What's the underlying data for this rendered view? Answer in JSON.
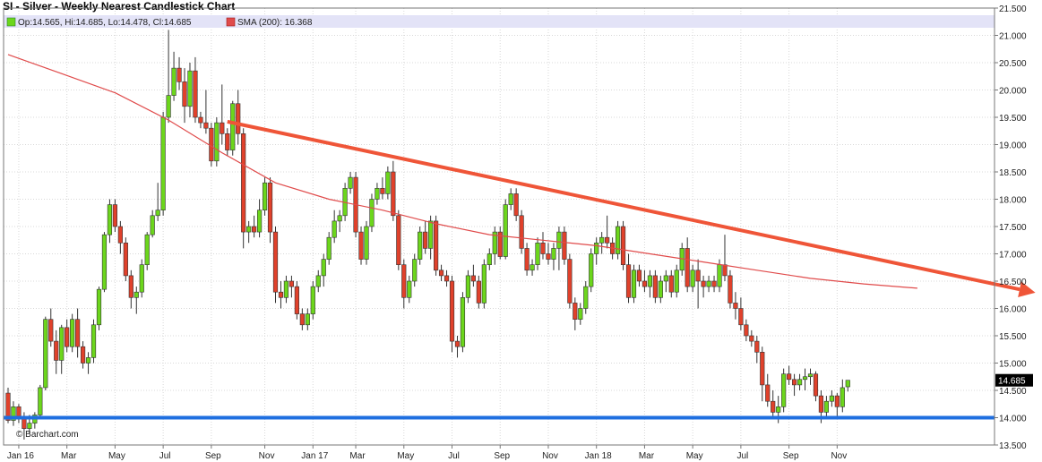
{
  "chart_title": "SI - Silver - Weekly Nearest Candlestick Chart",
  "legend": {
    "ohlc_label": "Op:14.565, Hi:14.685, Lo:14.478, Cl:14.685",
    "sma_label": "SMA (200): 16.368"
  },
  "watermark": "© Barchart.com",
  "colors": {
    "up": "#6cd61c",
    "down": "#e0412b",
    "sma": "#e04b4b",
    "trend_down": "#ef5538",
    "support": "#1f6fe0",
    "legend_band": "#e3e3f7",
    "grid": "#d8d8d8"
  },
  "chart_data": {
    "type": "candlestick",
    "title": "SI - Silver - Weekly Nearest Candlestick Chart",
    "y_range": [
      13.5,
      21.5
    ],
    "y_ticks": [
      "13.500",
      "14.000",
      "14.500",
      "15.000",
      "15.500",
      "16.000",
      "16.500",
      "17.000",
      "17.500",
      "18.000",
      "18.500",
      "19.000",
      "19.500",
      "20.000",
      "20.500",
      "21.000",
      "21.500"
    ],
    "x_ticks": [
      "Jan 16",
      "Mar",
      "May",
      "Jul",
      "Sep",
      "Nov",
      "Jan 17",
      "Mar",
      "May",
      "Jul",
      "Sep",
      "Nov",
      "Jan 18",
      "Mar",
      "May",
      "Jul",
      "Sep",
      "Nov"
    ],
    "last_price_label": "14.685",
    "series": [
      {
        "kind": "candles",
        "ohlc": [
          [
            14.45,
            14.55,
            13.9,
            13.95
          ],
          [
            13.95,
            14.3,
            13.85,
            14.2
          ],
          [
            14.2,
            14.25,
            13.9,
            14.0
          ],
          [
            14.0,
            14.1,
            13.6,
            13.8
          ],
          [
            13.8,
            14.05,
            13.7,
            13.9
          ],
          [
            13.9,
            14.1,
            13.8,
            14.05
          ],
          [
            14.05,
            14.6,
            14.0,
            14.55
          ],
          [
            14.55,
            15.85,
            14.5,
            15.8
          ],
          [
            15.8,
            16.0,
            15.3,
            15.4
          ],
          [
            15.4,
            15.6,
            14.8,
            15.05
          ],
          [
            15.05,
            15.7,
            14.8,
            15.65
          ],
          [
            15.65,
            15.8,
            15.2,
            15.3
          ],
          [
            15.3,
            15.9,
            15.2,
            15.8
          ],
          [
            15.8,
            16.0,
            15.1,
            15.3
          ],
          [
            15.3,
            15.4,
            14.9,
            15.0
          ],
          [
            15.0,
            15.2,
            14.8,
            15.1
          ],
          [
            15.1,
            15.8,
            15.0,
            15.7
          ],
          [
            15.7,
            16.4,
            15.6,
            16.35
          ],
          [
            16.35,
            17.4,
            16.3,
            17.35
          ],
          [
            17.35,
            18.0,
            17.2,
            17.9
          ],
          [
            17.9,
            18.0,
            17.4,
            17.5
          ],
          [
            17.5,
            17.6,
            17.0,
            17.2
          ],
          [
            17.2,
            17.3,
            16.5,
            16.6
          ],
          [
            16.6,
            16.7,
            16.0,
            16.2
          ],
          [
            16.2,
            16.4,
            15.9,
            16.3
          ],
          [
            16.3,
            16.9,
            16.2,
            16.8
          ],
          [
            16.8,
            17.4,
            16.7,
            17.35
          ],
          [
            17.35,
            17.8,
            17.3,
            17.7
          ],
          [
            17.7,
            18.3,
            17.6,
            17.8
          ],
          [
            17.8,
            19.6,
            17.7,
            19.5
          ],
          [
            19.5,
            21.1,
            19.4,
            19.9
          ],
          [
            19.9,
            20.7,
            19.8,
            20.4
          ],
          [
            20.4,
            20.6,
            20.0,
            20.15
          ],
          [
            20.15,
            20.4,
            19.4,
            19.7
          ],
          [
            19.7,
            20.5,
            19.5,
            20.35
          ],
          [
            20.35,
            20.6,
            19.4,
            19.5
          ],
          [
            19.5,
            19.6,
            19.3,
            19.4
          ],
          [
            19.4,
            20.0,
            19.2,
            19.3
          ],
          [
            19.3,
            19.4,
            18.6,
            18.7
          ],
          [
            18.7,
            19.5,
            18.6,
            19.4
          ],
          [
            19.4,
            20.1,
            19.0,
            19.2
          ],
          [
            19.2,
            19.3,
            18.8,
            18.9
          ],
          [
            18.9,
            19.8,
            18.8,
            19.75
          ],
          [
            19.75,
            20.0,
            19.0,
            19.2
          ],
          [
            19.2,
            19.3,
            17.1,
            17.4
          ],
          [
            17.4,
            17.6,
            17.2,
            17.5
          ],
          [
            17.5,
            17.7,
            17.3,
            17.4
          ],
          [
            17.4,
            18.0,
            17.3,
            17.8
          ],
          [
            17.8,
            18.4,
            17.7,
            18.3
          ],
          [
            18.3,
            18.4,
            17.2,
            17.4
          ],
          [
            17.4,
            17.5,
            16.1,
            16.3
          ],
          [
            16.3,
            16.5,
            16.0,
            16.2
          ],
          [
            16.2,
            16.6,
            16.1,
            16.5
          ],
          [
            16.5,
            16.6,
            16.2,
            16.4
          ],
          [
            16.4,
            16.5,
            15.8,
            15.9
          ],
          [
            15.9,
            16.0,
            15.6,
            15.7
          ],
          [
            15.7,
            16.0,
            15.6,
            15.9
          ],
          [
            15.9,
            16.5,
            15.8,
            16.4
          ],
          [
            16.4,
            16.7,
            16.3,
            16.6
          ],
          [
            16.6,
            17.0,
            16.4,
            16.9
          ],
          [
            16.9,
            17.4,
            16.8,
            17.3
          ],
          [
            17.3,
            17.8,
            17.2,
            17.6
          ],
          [
            17.6,
            17.8,
            17.4,
            17.7
          ],
          [
            17.7,
            18.3,
            17.6,
            18.2
          ],
          [
            18.2,
            18.5,
            18.1,
            18.4
          ],
          [
            18.4,
            18.5,
            17.3,
            17.4
          ],
          [
            17.4,
            17.5,
            16.8,
            16.9
          ],
          [
            16.9,
            17.6,
            16.8,
            17.5
          ],
          [
            17.5,
            18.1,
            17.4,
            18.0
          ],
          [
            18.0,
            18.3,
            17.9,
            18.2
          ],
          [
            18.2,
            18.4,
            18.0,
            18.1
          ],
          [
            18.1,
            18.6,
            18.0,
            18.5
          ],
          [
            18.5,
            18.7,
            17.6,
            17.7
          ],
          [
            17.7,
            17.8,
            16.7,
            16.8
          ],
          [
            16.8,
            16.9,
            16.0,
            16.2
          ],
          [
            16.2,
            16.6,
            16.1,
            16.5
          ],
          [
            16.5,
            17.0,
            16.4,
            16.9
          ],
          [
            16.9,
            17.5,
            16.8,
            17.4
          ],
          [
            17.4,
            17.6,
            17.0,
            17.1
          ],
          [
            17.1,
            17.7,
            16.9,
            17.6
          ],
          [
            17.6,
            17.7,
            16.6,
            16.7
          ],
          [
            16.7,
            16.8,
            16.5,
            16.6
          ],
          [
            16.6,
            16.7,
            16.4,
            16.5
          ],
          [
            16.5,
            16.6,
            15.2,
            15.4
          ],
          [
            15.4,
            15.5,
            15.1,
            15.3
          ],
          [
            15.3,
            16.3,
            15.2,
            16.2
          ],
          [
            16.2,
            16.7,
            16.1,
            16.6
          ],
          [
            16.6,
            16.8,
            16.4,
            16.5
          ],
          [
            16.5,
            16.6,
            16.0,
            16.1
          ],
          [
            16.1,
            16.9,
            16.0,
            16.8
          ],
          [
            16.8,
            17.1,
            16.7,
            17.0
          ],
          [
            17.0,
            17.5,
            16.8,
            17.4
          ],
          [
            17.4,
            17.5,
            16.9,
            16.95
          ],
          [
            16.95,
            18.0,
            16.9,
            17.9
          ],
          [
            17.9,
            18.2,
            17.8,
            18.1
          ],
          [
            18.1,
            18.2,
            17.6,
            17.7
          ],
          [
            17.7,
            17.8,
            17.0,
            17.1
          ],
          [
            17.1,
            17.2,
            16.6,
            16.7
          ],
          [
            16.7,
            16.9,
            16.6,
            16.8
          ],
          [
            16.8,
            17.3,
            16.7,
            17.2
          ],
          [
            17.2,
            17.4,
            16.9,
            17.0
          ],
          [
            17.0,
            17.2,
            16.8,
            16.9
          ],
          [
            16.9,
            17.2,
            16.7,
            17.1
          ],
          [
            17.1,
            17.5,
            16.7,
            17.4
          ],
          [
            17.4,
            17.5,
            16.8,
            16.9
          ],
          [
            16.9,
            17.0,
            16.0,
            16.1
          ],
          [
            16.1,
            16.2,
            15.6,
            15.8
          ],
          [
            15.8,
            16.1,
            15.7,
            16.0
          ],
          [
            16.0,
            16.5,
            15.9,
            16.4
          ],
          [
            16.4,
            17.1,
            16.3,
            17.0
          ],
          [
            17.0,
            17.3,
            16.8,
            17.2
          ],
          [
            17.2,
            17.4,
            17.0,
            17.3
          ],
          [
            17.3,
            17.7,
            17.1,
            17.2
          ],
          [
            17.2,
            17.3,
            16.9,
            17.0
          ],
          [
            17.0,
            17.6,
            16.9,
            17.5
          ],
          [
            17.5,
            17.6,
            16.7,
            16.8
          ],
          [
            16.8,
            17.0,
            16.1,
            16.2
          ],
          [
            16.2,
            16.8,
            16.1,
            16.7
          ],
          [
            16.7,
            16.8,
            16.4,
            16.5
          ],
          [
            16.5,
            16.7,
            16.3,
            16.4
          ],
          [
            16.4,
            16.7,
            16.2,
            16.6
          ],
          [
            16.6,
            16.7,
            16.1,
            16.2
          ],
          [
            16.2,
            16.6,
            16.1,
            16.5
          ],
          [
            16.5,
            16.7,
            16.3,
            16.6
          ],
          [
            16.6,
            16.7,
            16.2,
            16.3
          ],
          [
            16.3,
            16.8,
            16.2,
            16.7
          ],
          [
            16.7,
            17.2,
            16.6,
            17.1
          ],
          [
            17.1,
            17.3,
            16.3,
            16.4
          ],
          [
            16.4,
            16.8,
            16.3,
            16.7
          ],
          [
            16.7,
            16.9,
            16.0,
            16.5
          ],
          [
            16.5,
            16.6,
            16.2,
            16.4
          ],
          [
            16.4,
            16.6,
            16.3,
            16.5
          ],
          [
            16.5,
            16.6,
            16.3,
            16.4
          ],
          [
            16.4,
            16.9,
            16.3,
            16.8
          ],
          [
            16.8,
            17.35,
            16.5,
            16.6
          ],
          [
            16.6,
            16.7,
            16.0,
            16.1
          ],
          [
            16.1,
            16.3,
            15.8,
            16.0
          ],
          [
            16.0,
            16.2,
            15.6,
            15.7
          ],
          [
            15.7,
            15.8,
            15.4,
            15.5
          ],
          [
            15.5,
            15.6,
            15.3,
            15.4
          ],
          [
            15.4,
            15.5,
            15.0,
            15.2
          ],
          [
            15.2,
            15.3,
            14.3,
            14.6
          ],
          [
            14.6,
            14.8,
            14.2,
            14.3
          ],
          [
            14.3,
            14.5,
            14.0,
            14.1
          ],
          [
            14.1,
            14.4,
            13.9,
            14.2
          ],
          [
            14.2,
            14.9,
            14.1,
            14.8
          ],
          [
            14.8,
            14.95,
            14.6,
            14.7
          ],
          [
            14.7,
            14.8,
            14.4,
            14.6
          ],
          [
            14.6,
            14.8,
            14.5,
            14.7
          ],
          [
            14.7,
            14.9,
            14.5,
            14.75
          ],
          [
            14.75,
            14.9,
            14.6,
            14.8
          ],
          [
            14.8,
            14.85,
            14.3,
            14.4
          ],
          [
            14.4,
            14.5,
            13.9,
            14.1
          ],
          [
            14.1,
            14.4,
            14.0,
            14.3
          ],
          [
            14.3,
            14.5,
            14.2,
            14.4
          ],
          [
            14.4,
            14.45,
            14.0,
            14.2
          ],
          [
            14.2,
            14.7,
            14.1,
            14.55
          ],
          [
            14.565,
            14.685,
            14.478,
            14.685
          ]
        ]
      },
      {
        "kind": "line",
        "name": "SMA (200)",
        "x": [
          0,
          10,
          20,
          30,
          40,
          50,
          60,
          70,
          80,
          90,
          100,
          110,
          120,
          130,
          140,
          150,
          160,
          170
        ],
        "values": [
          20.65,
          20.3,
          19.95,
          19.45,
          18.85,
          18.3,
          18.0,
          17.8,
          17.55,
          17.35,
          17.25,
          17.15,
          17.0,
          16.85,
          16.7,
          16.55,
          16.45,
          16.37
        ]
      },
      {
        "kind": "trendline",
        "from": [
          41,
          19.42
        ],
        "to": [
          200,
          16.35
        ]
      },
      {
        "kind": "hline",
        "value": 14.0
      }
    ]
  }
}
